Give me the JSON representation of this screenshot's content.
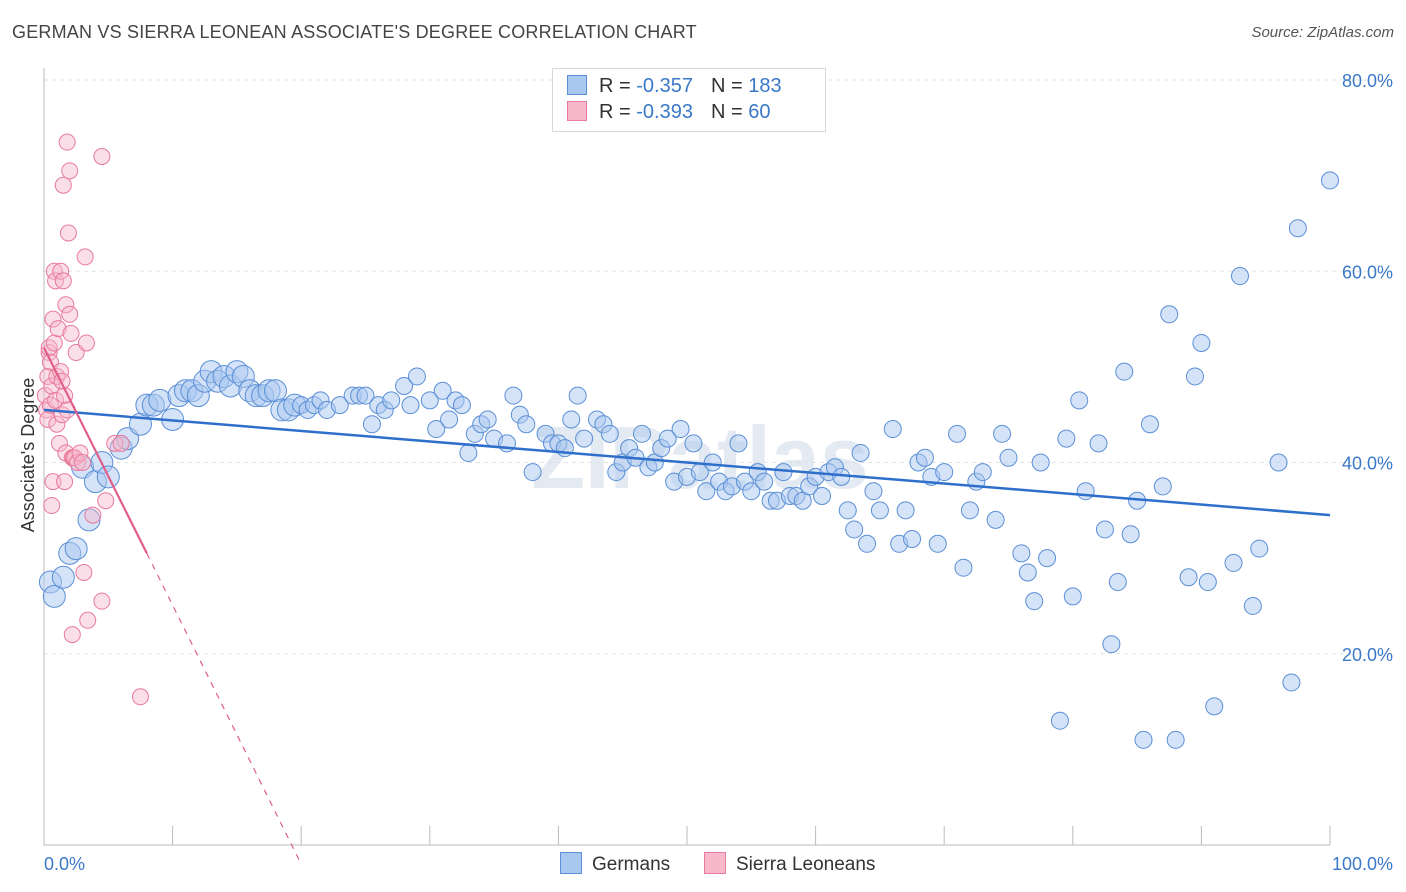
{
  "title": "GERMAN VS SIERRA LEONEAN ASSOCIATE'S DEGREE CORRELATION CHART",
  "source": "Source: ZipAtlas.com",
  "watermark": "ZIPatlas",
  "colors": {
    "german_fill": "#a9c8ef",
    "german_stroke": "#5b8fd6",
    "german_line": "#2f6fcc",
    "sierra_fill": "#f7b8cc",
    "sierra_stroke": "#e87a9c",
    "sierra_line": "#e0608a",
    "tick_label": "#3a78c8",
    "grid": "#e3e3e3"
  },
  "legend_stats": [
    {
      "r_label": "R =",
      "r_value": "-0.357",
      "n_label": "N =",
      "n_value": "183"
    },
    {
      "r_label": "R =",
      "r_value": "-0.393",
      "n_label": "N =",
      "n_value": "60"
    }
  ],
  "chart_data": {
    "type": "scatter",
    "title": "GERMAN VS SIERRA LEONEAN ASSOCIATE'S DEGREE CORRELATION CHART",
    "xlabel": "",
    "ylabel": "Associate's Degree",
    "xlim": [
      0,
      100
    ],
    "ylim": [
      0,
      80
    ],
    "x_tick_labels": [
      "0.0%",
      "100.0%"
    ],
    "y_ticks": [
      20,
      40,
      60,
      80
    ],
    "y_tick_labels": [
      "20.0%",
      "40.0%",
      "60.0%",
      "80.0%"
    ],
    "grid": true,
    "legend_position": "bottom",
    "series": [
      {
        "name": "Germans",
        "trend": {
          "x0": 0,
          "y0": 45.5,
          "x1": 100,
          "y1": 34.5
        },
        "points": [
          [
            0.5,
            27.5
          ],
          [
            0.8,
            26
          ],
          [
            1.5,
            28
          ],
          [
            2,
            30.5
          ],
          [
            2.5,
            31
          ],
          [
            3,
            39.5
          ],
          [
            3.5,
            34
          ],
          [
            4,
            38
          ],
          [
            4.5,
            40
          ],
          [
            5,
            38.5
          ],
          [
            6,
            41.5
          ],
          [
            6.5,
            42.5
          ],
          [
            7.5,
            44
          ],
          [
            8,
            46
          ],
          [
            8.5,
            46
          ],
          [
            9,
            46.5
          ],
          [
            10,
            44.5
          ],
          [
            10.5,
            47
          ],
          [
            11,
            47.5
          ],
          [
            11.5,
            47.5
          ],
          [
            12,
            47
          ],
          [
            12.5,
            48.5
          ],
          [
            13,
            49.5
          ],
          [
            13.5,
            48.5
          ],
          [
            14,
            49
          ],
          [
            14.5,
            48
          ],
          [
            15,
            49.5
          ],
          [
            15.5,
            49
          ],
          [
            16,
            47.5
          ],
          [
            16.5,
            47
          ],
          [
            17,
            47
          ],
          [
            17.5,
            47.5
          ],
          [
            18,
            47.5
          ],
          [
            18.5,
            45.5
          ],
          [
            19,
            45.5
          ],
          [
            19.5,
            46
          ],
          [
            20,
            46
          ],
          [
            20.5,
            45.5
          ],
          [
            21,
            46
          ],
          [
            21.5,
            46.5
          ],
          [
            22,
            45.5
          ],
          [
            23,
            46
          ],
          [
            24,
            47
          ],
          [
            24.5,
            47
          ],
          [
            25,
            47
          ],
          [
            25.5,
            44
          ],
          [
            26,
            46
          ],
          [
            26.5,
            45.5
          ],
          [
            27,
            46.5
          ],
          [
            28,
            48
          ],
          [
            28.5,
            46
          ],
          [
            29,
            49
          ],
          [
            30,
            46.5
          ],
          [
            30.5,
            43.5
          ],
          [
            31,
            47.5
          ],
          [
            31.5,
            44.5
          ],
          [
            32,
            46.5
          ],
          [
            32.5,
            46
          ],
          [
            33,
            41
          ],
          [
            33.5,
            43
          ],
          [
            34,
            44
          ],
          [
            34.5,
            44.5
          ],
          [
            35,
            42.5
          ],
          [
            36,
            42
          ],
          [
            36.5,
            47
          ],
          [
            37,
            45
          ],
          [
            37.5,
            44
          ],
          [
            38,
            39
          ],
          [
            39,
            43
          ],
          [
            39.5,
            42
          ],
          [
            40,
            42
          ],
          [
            40.5,
            41.5
          ],
          [
            41,
            44.5
          ],
          [
            41.5,
            47
          ],
          [
            42,
            42.5
          ],
          [
            43,
            44.5
          ],
          [
            43.5,
            44
          ],
          [
            44,
            43
          ],
          [
            44.5,
            39
          ],
          [
            45,
            40
          ],
          [
            45.5,
            41.5
          ],
          [
            46,
            40.5
          ],
          [
            46.5,
            43
          ],
          [
            47,
            39.5
          ],
          [
            47.5,
            40
          ],
          [
            48,
            41.5
          ],
          [
            48.5,
            42.5
          ],
          [
            49,
            38
          ],
          [
            49.5,
            43.5
          ],
          [
            50,
            38.5
          ],
          [
            50.5,
            42
          ],
          [
            51,
            39
          ],
          [
            51.5,
            37
          ],
          [
            52,
            40
          ],
          [
            52.5,
            38
          ],
          [
            53,
            37
          ],
          [
            53.5,
            37.5
          ],
          [
            54,
            42
          ],
          [
            54.5,
            38
          ],
          [
            55,
            37
          ],
          [
            55.5,
            39
          ],
          [
            56,
            38
          ],
          [
            56.5,
            36
          ],
          [
            57,
            36
          ],
          [
            57.5,
            39
          ],
          [
            58,
            36.5
          ],
          [
            58.5,
            36.5
          ],
          [
            59,
            36
          ],
          [
            59.5,
            37.5
          ],
          [
            60,
            38.5
          ],
          [
            60.5,
            36.5
          ],
          [
            61,
            39
          ],
          [
            61.5,
            39.5
          ],
          [
            62,
            38.5
          ],
          [
            62.5,
            35
          ],
          [
            63,
            33
          ],
          [
            63.5,
            41
          ],
          [
            64,
            31.5
          ],
          [
            64.5,
            37
          ],
          [
            65,
            35
          ],
          [
            66,
            43.5
          ],
          [
            66.5,
            31.5
          ],
          [
            67,
            35
          ],
          [
            67.5,
            32
          ],
          [
            68,
            40
          ],
          [
            68.5,
            40.5
          ],
          [
            69,
            38.5
          ],
          [
            69.5,
            31.5
          ],
          [
            70,
            39
          ],
          [
            71,
            43
          ],
          [
            71.5,
            29
          ],
          [
            72,
            35
          ],
          [
            72.5,
            38
          ],
          [
            73,
            39
          ],
          [
            74,
            34
          ],
          [
            74.5,
            43
          ],
          [
            75,
            40.5
          ],
          [
            76,
            30.5
          ],
          [
            76.5,
            28.5
          ],
          [
            77,
            25.5
          ],
          [
            77.5,
            40
          ],
          [
            78,
            30
          ],
          [
            79,
            13
          ],
          [
            79.5,
            42.5
          ],
          [
            80,
            26
          ],
          [
            80.5,
            46.5
          ],
          [
            81,
            37
          ],
          [
            82,
            42
          ],
          [
            82.5,
            33
          ],
          [
            83,
            21
          ],
          [
            83.5,
            27.5
          ],
          [
            84,
            49.5
          ],
          [
            84.5,
            32.5
          ],
          [
            85,
            36
          ],
          [
            85.5,
            11
          ],
          [
            86,
            44
          ],
          [
            87,
            37.5
          ],
          [
            87.5,
            55.5
          ],
          [
            88,
            11
          ],
          [
            89,
            28
          ],
          [
            89.5,
            49
          ],
          [
            90,
            52.5
          ],
          [
            90.5,
            27.5
          ],
          [
            91,
            14.5
          ],
          [
            92.5,
            29.5
          ],
          [
            93,
            59.5
          ],
          [
            94,
            25
          ],
          [
            94.5,
            31
          ],
          [
            96,
            40
          ],
          [
            97,
            17
          ],
          [
            97.5,
            64.5
          ],
          [
            100,
            69.5
          ]
        ]
      },
      {
        "name": "Sierra Leoneans",
        "trend": {
          "x0": 0,
          "y0": 52,
          "x1": 8,
          "y1": 30.5
        },
        "trend_extended": {
          "x0": 8,
          "y0": 30.5,
          "x1": 20,
          "y1": -2
        },
        "points": [
          [
            0.1,
            47
          ],
          [
            0.2,
            45.5
          ],
          [
            0.3,
            44.5
          ],
          [
            0.3,
            49
          ],
          [
            0.4,
            51.5
          ],
          [
            0.4,
            52
          ],
          [
            0.5,
            46
          ],
          [
            0.5,
            50.5
          ],
          [
            0.6,
            48
          ],
          [
            0.6,
            35.5
          ],
          [
            0.7,
            38
          ],
          [
            0.7,
            55
          ],
          [
            0.8,
            52.5
          ],
          [
            0.8,
            60
          ],
          [
            0.9,
            59
          ],
          [
            0.9,
            46.5
          ],
          [
            1,
            49
          ],
          [
            1,
            44
          ],
          [
            1.1,
            54
          ],
          [
            1.2,
            42
          ],
          [
            1.3,
            49.5
          ],
          [
            1.3,
            60
          ],
          [
            1.4,
            48.5
          ],
          [
            1.4,
            45
          ],
          [
            1.5,
            59
          ],
          [
            1.5,
            69
          ],
          [
            1.6,
            47
          ],
          [
            1.6,
            38
          ],
          [
            1.7,
            41
          ],
          [
            1.7,
            56.5
          ],
          [
            1.8,
            45.5
          ],
          [
            1.8,
            73.5
          ],
          [
            1.9,
            64
          ],
          [
            2,
            55.5
          ],
          [
            2,
            70.5
          ],
          [
            2.1,
            53.5
          ],
          [
            2.2,
            40.5
          ],
          [
            2.2,
            22
          ],
          [
            2.3,
            40.5
          ],
          [
            2.4,
            40.5
          ],
          [
            2.5,
            51.5
          ],
          [
            2.6,
            40
          ],
          [
            2.8,
            41
          ],
          [
            3,
            40
          ],
          [
            3.1,
            28.5
          ],
          [
            3.2,
            61.5
          ],
          [
            3.3,
            52.5
          ],
          [
            3.4,
            23.5
          ],
          [
            3.8,
            34.5
          ],
          [
            4.5,
            72
          ],
          [
            4.5,
            25.5
          ],
          [
            4.8,
            36
          ],
          [
            5.5,
            42
          ],
          [
            6,
            42
          ],
          [
            7.5,
            15.5
          ]
        ]
      }
    ]
  }
}
